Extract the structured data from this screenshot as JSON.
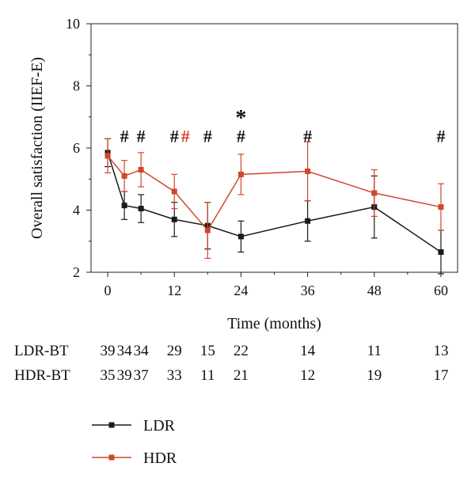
{
  "chart_data": {
    "type": "line",
    "xlabel": "Time (months)",
    "ylabel": "Overall satisfaction (IIEF-E)",
    "xlim": [
      -3,
      63
    ],
    "ylim": [
      2,
      10
    ],
    "x_ticks": [
      0,
      12,
      24,
      36,
      48,
      60
    ],
    "y_ticks": [
      2,
      4,
      6,
      8,
      10
    ],
    "series": [
      {
        "name": "LDR",
        "color": "#1a1a1a",
        "marker": "square",
        "x": [
          0,
          3,
          6,
          12,
          18,
          24,
          36,
          48,
          60
        ],
        "y": [
          5.85,
          4.15,
          4.05,
          3.7,
          3.5,
          3.15,
          3.65,
          4.1,
          2.65
        ],
        "err": [
          0.45,
          0.45,
          0.45,
          0.55,
          0.75,
          0.5,
          0.65,
          1.0,
          0.7
        ]
      },
      {
        "name": "HDR",
        "color": "#d2462b",
        "marker": "square",
        "x": [
          0,
          3,
          6,
          12,
          18,
          24,
          36,
          48,
          60
        ],
        "y": [
          5.75,
          5.1,
          5.3,
          4.6,
          3.35,
          5.15,
          5.25,
          4.55,
          4.1
        ],
        "err": [
          0.55,
          0.5,
          0.55,
          0.55,
          0.9,
          0.65,
          0.95,
          0.75,
          0.75
        ]
      }
    ],
    "annotations": [
      {
        "x": 3,
        "y": 6.4,
        "text": "#",
        "color": "#111111"
      },
      {
        "x": 6,
        "y": 6.4,
        "text": "#",
        "color": "#111111"
      },
      {
        "x": 12,
        "y": 6.4,
        "text": "#",
        "color": "#111111"
      },
      {
        "x": 14,
        "y": 6.4,
        "text": "#",
        "color": "#d2462b"
      },
      {
        "x": 18,
        "y": 6.4,
        "text": "#",
        "color": "#111111"
      },
      {
        "x": 24,
        "y": 6.4,
        "text": "#",
        "color": "#111111"
      },
      {
        "x": 24,
        "y": 7.1,
        "text": "*",
        "color": "#111111"
      },
      {
        "x": 36,
        "y": 6.4,
        "text": "#",
        "color": "#111111"
      },
      {
        "x": 60,
        "y": 6.4,
        "text": "#",
        "color": "#111111"
      }
    ],
    "n_table": {
      "rows": [
        {
          "label": "LDR-BT",
          "x": [
            0,
            3,
            6,
            12,
            18,
            24,
            36,
            48,
            60
          ],
          "values": [
            "39",
            "34",
            "34",
            "29",
            "15",
            "22",
            "14",
            "11",
            "13"
          ]
        },
        {
          "label": "HDR-BT",
          "x": [
            0,
            3,
            6,
            12,
            18,
            24,
            36,
            48,
            60
          ],
          "values": [
            "35",
            "39",
            "37",
            "33",
            "11",
            "21",
            "12",
            "19",
            "17"
          ]
        }
      ]
    },
    "legend": {
      "placement": "bottom-left",
      "entries": [
        {
          "label": "LDR",
          "color": "#1a1a1a"
        },
        {
          "label": "HDR",
          "color": "#d2462b"
        }
      ]
    }
  }
}
